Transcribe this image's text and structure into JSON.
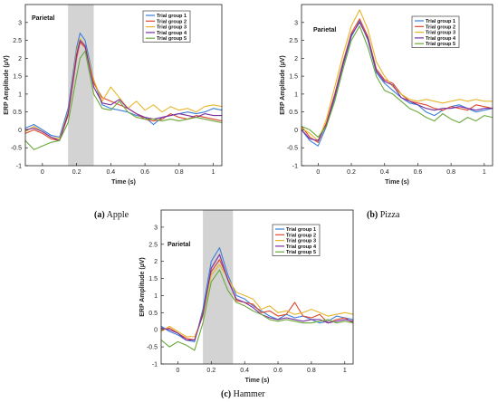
{
  "chart_data": [
    {
      "type": "line",
      "caption_id": "(a)",
      "caption_name": "Apple",
      "region_label": "Parietal",
      "xlabel": "Time (s)",
      "ylabel": "ERP Amplitude (µV)",
      "xlim": [
        -0.1,
        1.05
      ],
      "ylim": [
        -1,
        3.5
      ],
      "xticks": [
        0,
        0.2,
        0.4,
        0.6,
        0.8,
        1
      ],
      "xtick_labels": [
        "0",
        "0.2",
        "0.4",
        "0.6",
        "0.8",
        "1"
      ],
      "yticks": [
        -1,
        -0.5,
        0,
        0.5,
        1,
        1.5,
        2,
        2.5,
        3
      ],
      "ytick_labels": [
        "-1",
        "-0.5",
        "0",
        "0.5",
        "1",
        "1.5",
        "2",
        "2.5",
        "3"
      ],
      "shaded_window": [
        0.15,
        0.3
      ],
      "legend_position": "top-right",
      "series": [
        {
          "name": "Trial group 1",
          "color": "#3b7fd9",
          "x": [
            -0.1,
            -0.05,
            0,
            0.05,
            0.1,
            0.15,
            0.2,
            0.22,
            0.25,
            0.3,
            0.35,
            0.4,
            0.45,
            0.5,
            0.55,
            0.6,
            0.65,
            0.7,
            0.75,
            0.8,
            0.85,
            0.9,
            0.95,
            1,
            1.05
          ],
          "y": [
            0.05,
            0.15,
            0.0,
            -0.15,
            -0.2,
            0.6,
            2.3,
            2.7,
            2.5,
            1.4,
            0.7,
            0.6,
            0.55,
            0.5,
            0.4,
            0.35,
            0.15,
            0.35,
            0.4,
            0.45,
            0.5,
            0.45,
            0.5,
            0.6,
            0.55
          ]
        },
        {
          "name": "Trial group 2",
          "color": "#e0482c",
          "x": [
            -0.1,
            -0.05,
            0,
            0.05,
            0.1,
            0.15,
            0.2,
            0.22,
            0.25,
            0.3,
            0.35,
            0.4,
            0.45,
            0.5,
            0.55,
            0.6,
            0.65,
            0.7,
            0.75,
            0.8,
            0.85,
            0.9,
            0.95,
            1,
            1.05
          ],
          "y": [
            -0.1,
            0.0,
            -0.1,
            -0.25,
            -0.3,
            0.4,
            2.0,
            2.45,
            2.3,
            1.3,
            0.9,
            0.8,
            0.7,
            0.6,
            0.45,
            0.3,
            0.25,
            0.3,
            0.45,
            0.35,
            0.3,
            0.4,
            0.35,
            0.3,
            0.25
          ]
        },
        {
          "name": "Trial group 3",
          "color": "#e8b62c",
          "x": [
            -0.1,
            -0.05,
            0,
            0.05,
            0.1,
            0.15,
            0.2,
            0.22,
            0.25,
            0.3,
            0.35,
            0.4,
            0.45,
            0.5,
            0.55,
            0.6,
            0.65,
            0.7,
            0.75,
            0.8,
            0.85,
            0.9,
            0.95,
            1,
            1.05
          ],
          "y": [
            -0.05,
            0.1,
            -0.05,
            -0.2,
            -0.25,
            0.5,
            2.2,
            2.55,
            2.35,
            1.4,
            0.8,
            1.2,
            0.9,
            0.6,
            0.8,
            0.55,
            0.7,
            0.5,
            0.65,
            0.55,
            0.6,
            0.5,
            0.65,
            0.7,
            0.65
          ]
        },
        {
          "name": "Trial group 4",
          "color": "#7a2fa0",
          "x": [
            -0.1,
            -0.05,
            0,
            0.05,
            0.1,
            0.15,
            0.2,
            0.22,
            0.25,
            0.3,
            0.35,
            0.4,
            0.45,
            0.5,
            0.55,
            0.6,
            0.65,
            0.7,
            0.75,
            0.8,
            0.85,
            0.9,
            0.95,
            1,
            1.05
          ],
          "y": [
            0.0,
            0.05,
            -0.05,
            -0.2,
            -0.3,
            0.45,
            2.1,
            2.5,
            2.35,
            1.2,
            0.75,
            0.7,
            0.85,
            0.6,
            0.45,
            0.35,
            0.3,
            0.35,
            0.4,
            0.45,
            0.4,
            0.35,
            0.45,
            0.4,
            0.4
          ]
        },
        {
          "name": "Trial group 5",
          "color": "#6aa83a",
          "x": [
            -0.1,
            -0.05,
            0,
            0.05,
            0.1,
            0.15,
            0.2,
            0.22,
            0.25,
            0.3,
            0.35,
            0.4,
            0.45,
            0.5,
            0.55,
            0.6,
            0.65,
            0.7,
            0.75,
            0.8,
            0.85,
            0.9,
            0.95,
            1,
            1.05
          ],
          "y": [
            -0.3,
            -0.55,
            -0.45,
            -0.35,
            -0.3,
            0.2,
            1.5,
            2.0,
            2.2,
            1.0,
            0.6,
            0.55,
            0.8,
            0.5,
            0.35,
            0.3,
            0.3,
            0.25,
            0.3,
            0.25,
            0.3,
            0.35,
            0.3,
            0.25,
            0.2
          ]
        }
      ]
    },
    {
      "type": "line",
      "caption_id": "(b)",
      "caption_name": "Pizza",
      "region_label": "Parietal",
      "xlabel": "Time (s)",
      "ylabel": "ERP Amplitude (µV)",
      "xlim": [
        -0.1,
        1.05
      ],
      "ylim": [
        -1,
        3.5
      ],
      "xticks": [
        0,
        0.2,
        0.4,
        0.6,
        0.8,
        1
      ],
      "xtick_labels": [
        "0",
        "0.2",
        "0.4",
        "0.6",
        "0.8",
        "1"
      ],
      "yticks": [
        -1,
        -0.5,
        0,
        0.5,
        1,
        1.5,
        2,
        2.5,
        3
      ],
      "ytick_labels": [
        "-1",
        "-0.5",
        "0",
        "0.5",
        "1",
        "1.5",
        "2",
        "2.5",
        "3"
      ],
      "shaded_window": null,
      "legend_position": "top-right",
      "series": [
        {
          "name": "Trial group 1",
          "color": "#3b7fd9",
          "x": [
            -0.1,
            -0.05,
            0,
            0.05,
            0.1,
            0.15,
            0.2,
            0.25,
            0.3,
            0.35,
            0.4,
            0.45,
            0.5,
            0.55,
            0.6,
            0.65,
            0.7,
            0.75,
            0.8,
            0.85,
            0.9,
            0.95,
            1,
            1.05
          ],
          "y": [
            0.0,
            -0.3,
            -0.45,
            0.1,
            0.9,
            1.8,
            2.6,
            3.05,
            2.5,
            1.6,
            1.3,
            1.1,
            0.9,
            0.75,
            0.7,
            0.5,
            0.4,
            0.55,
            0.65,
            0.7,
            0.6,
            0.5,
            0.55,
            0.6
          ]
        },
        {
          "name": "Trial group 2",
          "color": "#e0482c",
          "x": [
            -0.1,
            -0.05,
            0,
            0.05,
            0.1,
            0.15,
            0.2,
            0.25,
            0.3,
            0.35,
            0.4,
            0.45,
            0.5,
            0.55,
            0.6,
            0.65,
            0.7,
            0.75,
            0.8,
            0.85,
            0.9,
            0.95,
            1,
            1.05
          ],
          "y": [
            0.1,
            -0.2,
            -0.35,
            0.2,
            1.0,
            1.9,
            2.7,
            3.1,
            2.6,
            1.7,
            1.4,
            1.3,
            1.0,
            0.8,
            0.75,
            0.7,
            0.6,
            0.55,
            0.65,
            0.6,
            0.55,
            0.7,
            0.65,
            0.6
          ]
        },
        {
          "name": "Trial group 3",
          "color": "#e8b62c",
          "x": [
            -0.1,
            -0.05,
            0,
            0.05,
            0.1,
            0.15,
            0.2,
            0.25,
            0.3,
            0.35,
            0.4,
            0.45,
            0.5,
            0.55,
            0.6,
            0.65,
            0.7,
            0.75,
            0.8,
            0.85,
            0.9,
            0.95,
            1,
            1.05
          ],
          "y": [
            0.05,
            -0.1,
            -0.3,
            0.3,
            1.2,
            2.1,
            2.9,
            3.35,
            2.8,
            1.9,
            1.5,
            1.2,
            1.0,
            0.85,
            0.8,
            0.85,
            0.8,
            0.75,
            0.8,
            0.85,
            0.8,
            0.85,
            0.8,
            0.8
          ]
        },
        {
          "name": "Trial group 4",
          "color": "#7a2fa0",
          "x": [
            -0.1,
            -0.05,
            0,
            0.05,
            0.1,
            0.15,
            0.2,
            0.25,
            0.3,
            0.35,
            0.4,
            0.45,
            0.5,
            0.55,
            0.6,
            0.65,
            0.7,
            0.75,
            0.8,
            0.85,
            0.9,
            0.95,
            1,
            1.05
          ],
          "y": [
            0.0,
            -0.25,
            -0.3,
            0.15,
            0.95,
            1.85,
            2.65,
            3.0,
            2.55,
            1.65,
            1.35,
            1.25,
            0.9,
            0.8,
            0.7,
            0.6,
            0.55,
            0.6,
            0.6,
            0.65,
            0.6,
            0.55,
            0.6,
            0.6
          ]
        },
        {
          "name": "Trial group 5",
          "color": "#6aa83a",
          "x": [
            -0.1,
            -0.05,
            0,
            0.05,
            0.1,
            0.15,
            0.2,
            0.25,
            0.3,
            0.35,
            0.4,
            0.45,
            0.5,
            0.55,
            0.6,
            0.65,
            0.7,
            0.75,
            0.8,
            0.85,
            0.9,
            0.95,
            1,
            1.05
          ],
          "y": [
            0.1,
            0.0,
            -0.2,
            0.1,
            0.8,
            1.7,
            2.5,
            2.9,
            2.3,
            1.5,
            1.1,
            1.0,
            0.8,
            0.6,
            0.5,
            0.35,
            0.25,
            0.45,
            0.3,
            0.2,
            0.35,
            0.25,
            0.4,
            0.35
          ]
        }
      ]
    },
    {
      "type": "line",
      "caption_id": "(c)",
      "caption_name": "Hammer",
      "region_label": "Parietal",
      "xlabel": "Time (s)",
      "ylabel": "ERP Amplitude (µV)",
      "xlim": [
        -0.1,
        1.05
      ],
      "ylim": [
        -1,
        3.5
      ],
      "xticks": [
        0,
        0.2,
        0.4,
        0.6,
        0.8,
        1
      ],
      "xtick_labels": [
        "0",
        "0.2",
        "0.4",
        "0.6",
        "0.8",
        "1"
      ],
      "yticks": [
        -1,
        -0.5,
        0,
        0.5,
        1,
        1.5,
        2,
        2.5,
        3
      ],
      "ytick_labels": [
        "-1",
        "-0.5",
        "0",
        "0.5",
        "1",
        "1.5",
        "2",
        "2.5",
        "3"
      ],
      "shaded_window": [
        0.15,
        0.33
      ],
      "legend_position": "top-right",
      "series": [
        {
          "name": "Trial group 1",
          "color": "#3b7fd9",
          "x": [
            -0.1,
            -0.05,
            0,
            0.05,
            0.1,
            0.15,
            0.2,
            0.25,
            0.3,
            0.35,
            0.4,
            0.45,
            0.5,
            0.55,
            0.6,
            0.65,
            0.7,
            0.75,
            0.8,
            0.85,
            0.9,
            0.95,
            1,
            1.05
          ],
          "y": [
            0.1,
            -0.05,
            -0.15,
            -0.3,
            -0.35,
            0.6,
            2.0,
            2.4,
            1.6,
            1.0,
            0.9,
            0.7,
            0.55,
            0.4,
            0.3,
            0.45,
            0.35,
            0.4,
            0.3,
            0.2,
            0.25,
            0.4,
            0.35,
            0.3
          ]
        },
        {
          "name": "Trial group 2",
          "color": "#e0482c",
          "x": [
            -0.1,
            -0.05,
            0,
            0.05,
            0.1,
            0.15,
            0.2,
            0.25,
            0.3,
            0.35,
            0.4,
            0.45,
            0.5,
            0.55,
            0.6,
            0.65,
            0.7,
            0.75,
            0.8,
            0.85,
            0.9,
            0.95,
            1,
            1.05
          ],
          "y": [
            0.0,
            0.05,
            -0.1,
            -0.25,
            -0.3,
            0.5,
            1.7,
            2.05,
            1.5,
            0.85,
            0.8,
            0.75,
            0.5,
            0.55,
            0.4,
            0.45,
            0.8,
            0.4,
            0.35,
            0.45,
            0.2,
            0.3,
            0.35,
            0.2
          ]
        },
        {
          "name": "Trial group 3",
          "color": "#e8b62c",
          "x": [
            -0.1,
            -0.05,
            0,
            0.05,
            0.1,
            0.15,
            0.2,
            0.25,
            0.3,
            0.35,
            0.4,
            0.45,
            0.5,
            0.55,
            0.6,
            0.65,
            0.7,
            0.75,
            0.8,
            0.85,
            0.9,
            0.95,
            1,
            1.05
          ],
          "y": [
            -0.05,
            0.1,
            -0.05,
            -0.2,
            -0.2,
            0.4,
            1.6,
            1.9,
            1.5,
            1.1,
            1.0,
            0.9,
            0.6,
            0.7,
            0.5,
            0.55,
            0.45,
            0.5,
            0.6,
            0.5,
            0.4,
            0.45,
            0.5,
            0.45
          ]
        },
        {
          "name": "Trial group 4",
          "color": "#7a2fa0",
          "x": [
            -0.1,
            -0.05,
            0,
            0.05,
            0.1,
            0.15,
            0.2,
            0.25,
            0.3,
            0.35,
            0.4,
            0.45,
            0.5,
            0.55,
            0.6,
            0.65,
            0.7,
            0.75,
            0.8,
            0.85,
            0.9,
            0.95,
            1,
            1.05
          ],
          "y": [
            0.05,
            0.0,
            -0.1,
            -0.3,
            -0.3,
            0.45,
            1.8,
            2.2,
            1.45,
            0.9,
            0.8,
            0.65,
            0.45,
            0.35,
            0.3,
            0.35,
            0.3,
            0.25,
            0.3,
            0.3,
            0.2,
            0.25,
            0.3,
            0.25
          ]
        },
        {
          "name": "Trial group 5",
          "color": "#6aa83a",
          "x": [
            -0.1,
            -0.05,
            0,
            0.05,
            0.1,
            0.15,
            0.2,
            0.25,
            0.3,
            0.35,
            0.4,
            0.45,
            0.5,
            0.55,
            0.6,
            0.65,
            0.7,
            0.75,
            0.8,
            0.85,
            0.9,
            0.95,
            1,
            1.05
          ],
          "y": [
            -0.3,
            -0.5,
            -0.35,
            -0.45,
            -0.6,
            0.2,
            1.4,
            1.75,
            1.15,
            0.8,
            0.7,
            0.55,
            0.45,
            0.3,
            0.25,
            0.3,
            0.25,
            0.2,
            0.2,
            0.25,
            0.3,
            0.2,
            0.25,
            0.2
          ]
        }
      ]
    }
  ]
}
